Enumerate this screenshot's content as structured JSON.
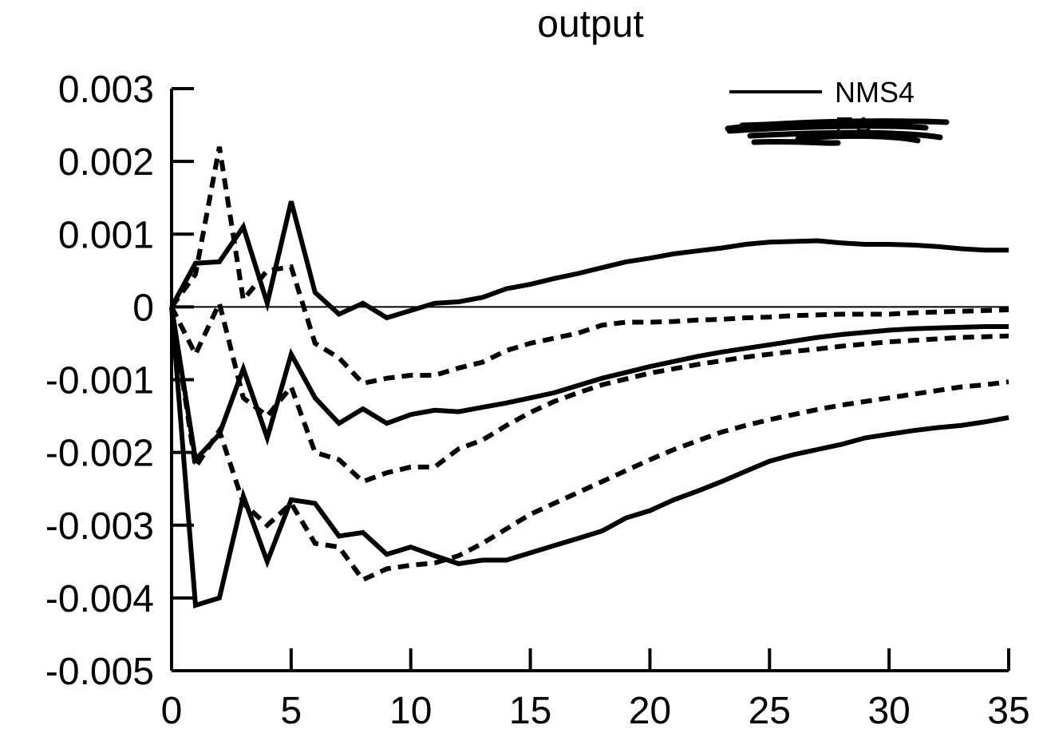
{
  "chart_data": {
    "type": "line",
    "title": "output",
    "xlabel": "",
    "ylabel": "",
    "xlim": [
      0,
      35
    ],
    "ylim": [
      -0.005,
      0.003
    ],
    "x_ticks": [
      "0",
      "5",
      "10",
      "15",
      "20",
      "25",
      "30",
      "35"
    ],
    "x_tick_values": [
      0,
      5,
      10,
      15,
      20,
      25,
      30,
      35
    ],
    "y_ticks": [
      "0.003",
      "0.002",
      "0.001",
      "0",
      "-0.001",
      "-0.002",
      "-0.003",
      "-0.004",
      "-0.005"
    ],
    "y_tick_values": [
      0.003,
      0.002,
      0.001,
      0,
      -0.001,
      -0.002,
      -0.003,
      -0.004,
      -0.005
    ],
    "zero_line": true,
    "legend": {
      "placement": "top-right",
      "entries": [
        {
          "label": "NMS4",
          "style": "solid"
        },
        {
          "label": "EA",
          "style": "dashed",
          "obscured": true
        }
      ]
    },
    "series": [
      {
        "style": "solid",
        "values": [
          [
            0,
            0
          ],
          [
            1,
            0.0006
          ],
          [
            2,
            0.00062
          ],
          [
            3,
            0.0011
          ],
          [
            4,
            5e-05
          ],
          [
            5,
            0.00145
          ],
          [
            6,
            0.0002
          ],
          [
            7,
            -0.0001
          ],
          [
            8,
            5e-05
          ],
          [
            9,
            -0.00015
          ],
          [
            10,
            -5e-05
          ],
          [
            11,
            5e-05
          ],
          [
            12,
            7e-05
          ],
          [
            13,
            0.00013
          ],
          [
            14,
            0.00025
          ],
          [
            15,
            0.00031
          ],
          [
            16,
            0.00039
          ],
          [
            17,
            0.00046
          ],
          [
            18,
            0.00054
          ],
          [
            19,
            0.00062
          ],
          [
            20,
            0.00067
          ],
          [
            21,
            0.00073
          ],
          [
            22,
            0.00077
          ],
          [
            23,
            0.00081
          ],
          [
            24,
            0.00086
          ],
          [
            25,
            0.00089
          ],
          [
            26,
            0.0009
          ],
          [
            27,
            0.00091
          ],
          [
            28,
            0.00088
          ],
          [
            29,
            0.00086
          ],
          [
            30,
            0.00086
          ],
          [
            31,
            0.00085
          ],
          [
            32,
            0.00083
          ],
          [
            33,
            0.0008
          ],
          [
            34,
            0.00078
          ],
          [
            35,
            0.00078
          ]
        ]
      },
      {
        "style": "solid",
        "values": [
          [
            0,
            0
          ],
          [
            1,
            -0.0021
          ],
          [
            2,
            -0.00175
          ],
          [
            3,
            -0.00085
          ],
          [
            4,
            -0.0018
          ],
          [
            5,
            -0.00065
          ],
          [
            6,
            -0.00125
          ],
          [
            7,
            -0.0016
          ],
          [
            8,
            -0.0014
          ],
          [
            9,
            -0.0016
          ],
          [
            10,
            -0.00148
          ],
          [
            11,
            -0.00142
          ],
          [
            12,
            -0.00144
          ],
          [
            13,
            -0.00138
          ],
          [
            14,
            -0.00132
          ],
          [
            15,
            -0.00125
          ],
          [
            16,
            -0.00118
          ],
          [
            17,
            -0.00108
          ],
          [
            18,
            -0.00098
          ],
          [
            19,
            -0.0009
          ],
          [
            20,
            -0.00082
          ],
          [
            21,
            -0.00075
          ],
          [
            22,
            -0.00068
          ],
          [
            23,
            -0.00062
          ],
          [
            24,
            -0.00057
          ],
          [
            25,
            -0.00052
          ],
          [
            26,
            -0.00047
          ],
          [
            27,
            -0.00042
          ],
          [
            28,
            -0.00038
          ],
          [
            29,
            -0.00035
          ],
          [
            30,
            -0.00032
          ],
          [
            31,
            -0.0003
          ],
          [
            32,
            -0.00029
          ],
          [
            33,
            -0.00028
          ],
          [
            34,
            -0.00027
          ],
          [
            35,
            -0.00027
          ]
        ]
      },
      {
        "style": "solid",
        "values": [
          [
            0,
            0
          ],
          [
            1,
            -0.0041
          ],
          [
            2,
            -0.004
          ],
          [
            3,
            -0.0026
          ],
          [
            4,
            -0.0035
          ],
          [
            5,
            -0.00265
          ],
          [
            6,
            -0.0027
          ],
          [
            7,
            -0.00315
          ],
          [
            8,
            -0.0031
          ],
          [
            9,
            -0.0034
          ],
          [
            10,
            -0.0033
          ],
          [
            11,
            -0.00342
          ],
          [
            12,
            -0.00353
          ],
          [
            13,
            -0.00348
          ],
          [
            14,
            -0.00348
          ],
          [
            15,
            -0.00338
          ],
          [
            16,
            -0.00328
          ],
          [
            17,
            -0.00318
          ],
          [
            18,
            -0.00308
          ],
          [
            19,
            -0.0029
          ],
          [
            20,
            -0.0028
          ],
          [
            21,
            -0.00265
          ],
          [
            22,
            -0.00253
          ],
          [
            23,
            -0.0024
          ],
          [
            24,
            -0.00226
          ],
          [
            25,
            -0.00212
          ],
          [
            26,
            -0.00203
          ],
          [
            27,
            -0.00196
          ],
          [
            28,
            -0.00189
          ],
          [
            29,
            -0.0018
          ],
          [
            30,
            -0.00175
          ],
          [
            31,
            -0.0017
          ],
          [
            32,
            -0.00166
          ],
          [
            33,
            -0.00163
          ],
          [
            34,
            -0.00158
          ],
          [
            35,
            -0.00152
          ]
        ]
      },
      {
        "style": "dashed",
        "values": [
          [
            0,
            0
          ],
          [
            1,
            0.00045
          ],
          [
            2,
            0.0022
          ],
          [
            3,
            0.0001
          ],
          [
            4,
            0.0005
          ],
          [
            5,
            0.00055
          ],
          [
            6,
            -0.0005
          ],
          [
            7,
            -0.0007
          ],
          [
            8,
            -0.00105
          ],
          [
            9,
            -0.00098
          ],
          [
            10,
            -0.00094
          ],
          [
            11,
            -0.00094
          ],
          [
            12,
            -0.00084
          ],
          [
            13,
            -0.00076
          ],
          [
            14,
            -0.0006
          ],
          [
            15,
            -0.0005
          ],
          [
            16,
            -0.00043
          ],
          [
            17,
            -0.00036
          ],
          [
            18,
            -0.00025
          ],
          [
            19,
            -0.00021
          ],
          [
            20,
            -0.00021
          ],
          [
            21,
            -0.0002
          ],
          [
            22,
            -0.00018
          ],
          [
            23,
            -0.00017
          ],
          [
            24,
            -0.00015
          ],
          [
            25,
            -0.00014
          ],
          [
            26,
            -0.00012
          ],
          [
            27,
            -0.00011
          ],
          [
            28,
            -0.0001
          ],
          [
            29,
            -0.0001
          ],
          [
            30,
            -0.0001
          ],
          [
            31,
            -8e-05
          ],
          [
            32,
            -7e-05
          ],
          [
            33,
            -6e-05
          ],
          [
            34,
            -5e-05
          ],
          [
            35,
            -4e-05
          ]
        ]
      },
      {
        "style": "dashed",
        "values": [
          [
            0,
            0
          ],
          [
            1,
            -0.00065
          ],
          [
            2,
            5e-05
          ],
          [
            3,
            -0.00125
          ],
          [
            4,
            -0.0015
          ],
          [
            5,
            -0.0011
          ],
          [
            6,
            -0.002
          ],
          [
            7,
            -0.0021
          ],
          [
            8,
            -0.0024
          ],
          [
            9,
            -0.00228
          ],
          [
            10,
            -0.0022
          ],
          [
            11,
            -0.0022
          ],
          [
            12,
            -0.00195
          ],
          [
            13,
            -0.00183
          ],
          [
            14,
            -0.00163
          ],
          [
            15,
            -0.00145
          ],
          [
            16,
            -0.0013
          ],
          [
            17,
            -0.00118
          ],
          [
            18,
            -0.00107
          ],
          [
            19,
            -0.00099
          ],
          [
            20,
            -0.00091
          ],
          [
            21,
            -0.00085
          ],
          [
            22,
            -0.00079
          ],
          [
            23,
            -0.00074
          ],
          [
            24,
            -0.00069
          ],
          [
            25,
            -0.00065
          ],
          [
            26,
            -0.00061
          ],
          [
            27,
            -0.00058
          ],
          [
            28,
            -0.00054
          ],
          [
            29,
            -0.00051
          ],
          [
            30,
            -0.00048
          ],
          [
            31,
            -0.00046
          ],
          [
            32,
            -0.00044
          ],
          [
            33,
            -0.00042
          ],
          [
            34,
            -0.00041
          ],
          [
            35,
            -0.0004
          ]
        ]
      },
      {
        "style": "dashed",
        "values": [
          [
            0,
            0
          ],
          [
            1,
            -0.0022
          ],
          [
            2,
            -0.0017
          ],
          [
            3,
            -0.0027
          ],
          [
            4,
            -0.003
          ],
          [
            5,
            -0.0027
          ],
          [
            6,
            -0.00325
          ],
          [
            7,
            -0.0033
          ],
          [
            8,
            -0.00375
          ],
          [
            9,
            -0.0036
          ],
          [
            10,
            -0.00355
          ],
          [
            11,
            -0.00352
          ],
          [
            12,
            -0.00342
          ],
          [
            13,
            -0.00325
          ],
          [
            14,
            -0.00305
          ],
          [
            15,
            -0.00285
          ],
          [
            16,
            -0.0027
          ],
          [
            17,
            -0.00255
          ],
          [
            18,
            -0.0024
          ],
          [
            19,
            -0.00225
          ],
          [
            20,
            -0.0021
          ],
          [
            21,
            -0.00196
          ],
          [
            22,
            -0.00184
          ],
          [
            23,
            -0.00172
          ],
          [
            24,
            -0.00163
          ],
          [
            25,
            -0.00155
          ],
          [
            26,
            -0.00148
          ],
          [
            27,
            -0.00141
          ],
          [
            28,
            -0.00135
          ],
          [
            29,
            -0.0013
          ],
          [
            30,
            -0.00125
          ],
          [
            31,
            -0.0012
          ],
          [
            32,
            -0.00115
          ],
          [
            33,
            -0.0011
          ],
          [
            34,
            -0.00107
          ],
          [
            35,
            -0.00103
          ]
        ]
      }
    ]
  }
}
